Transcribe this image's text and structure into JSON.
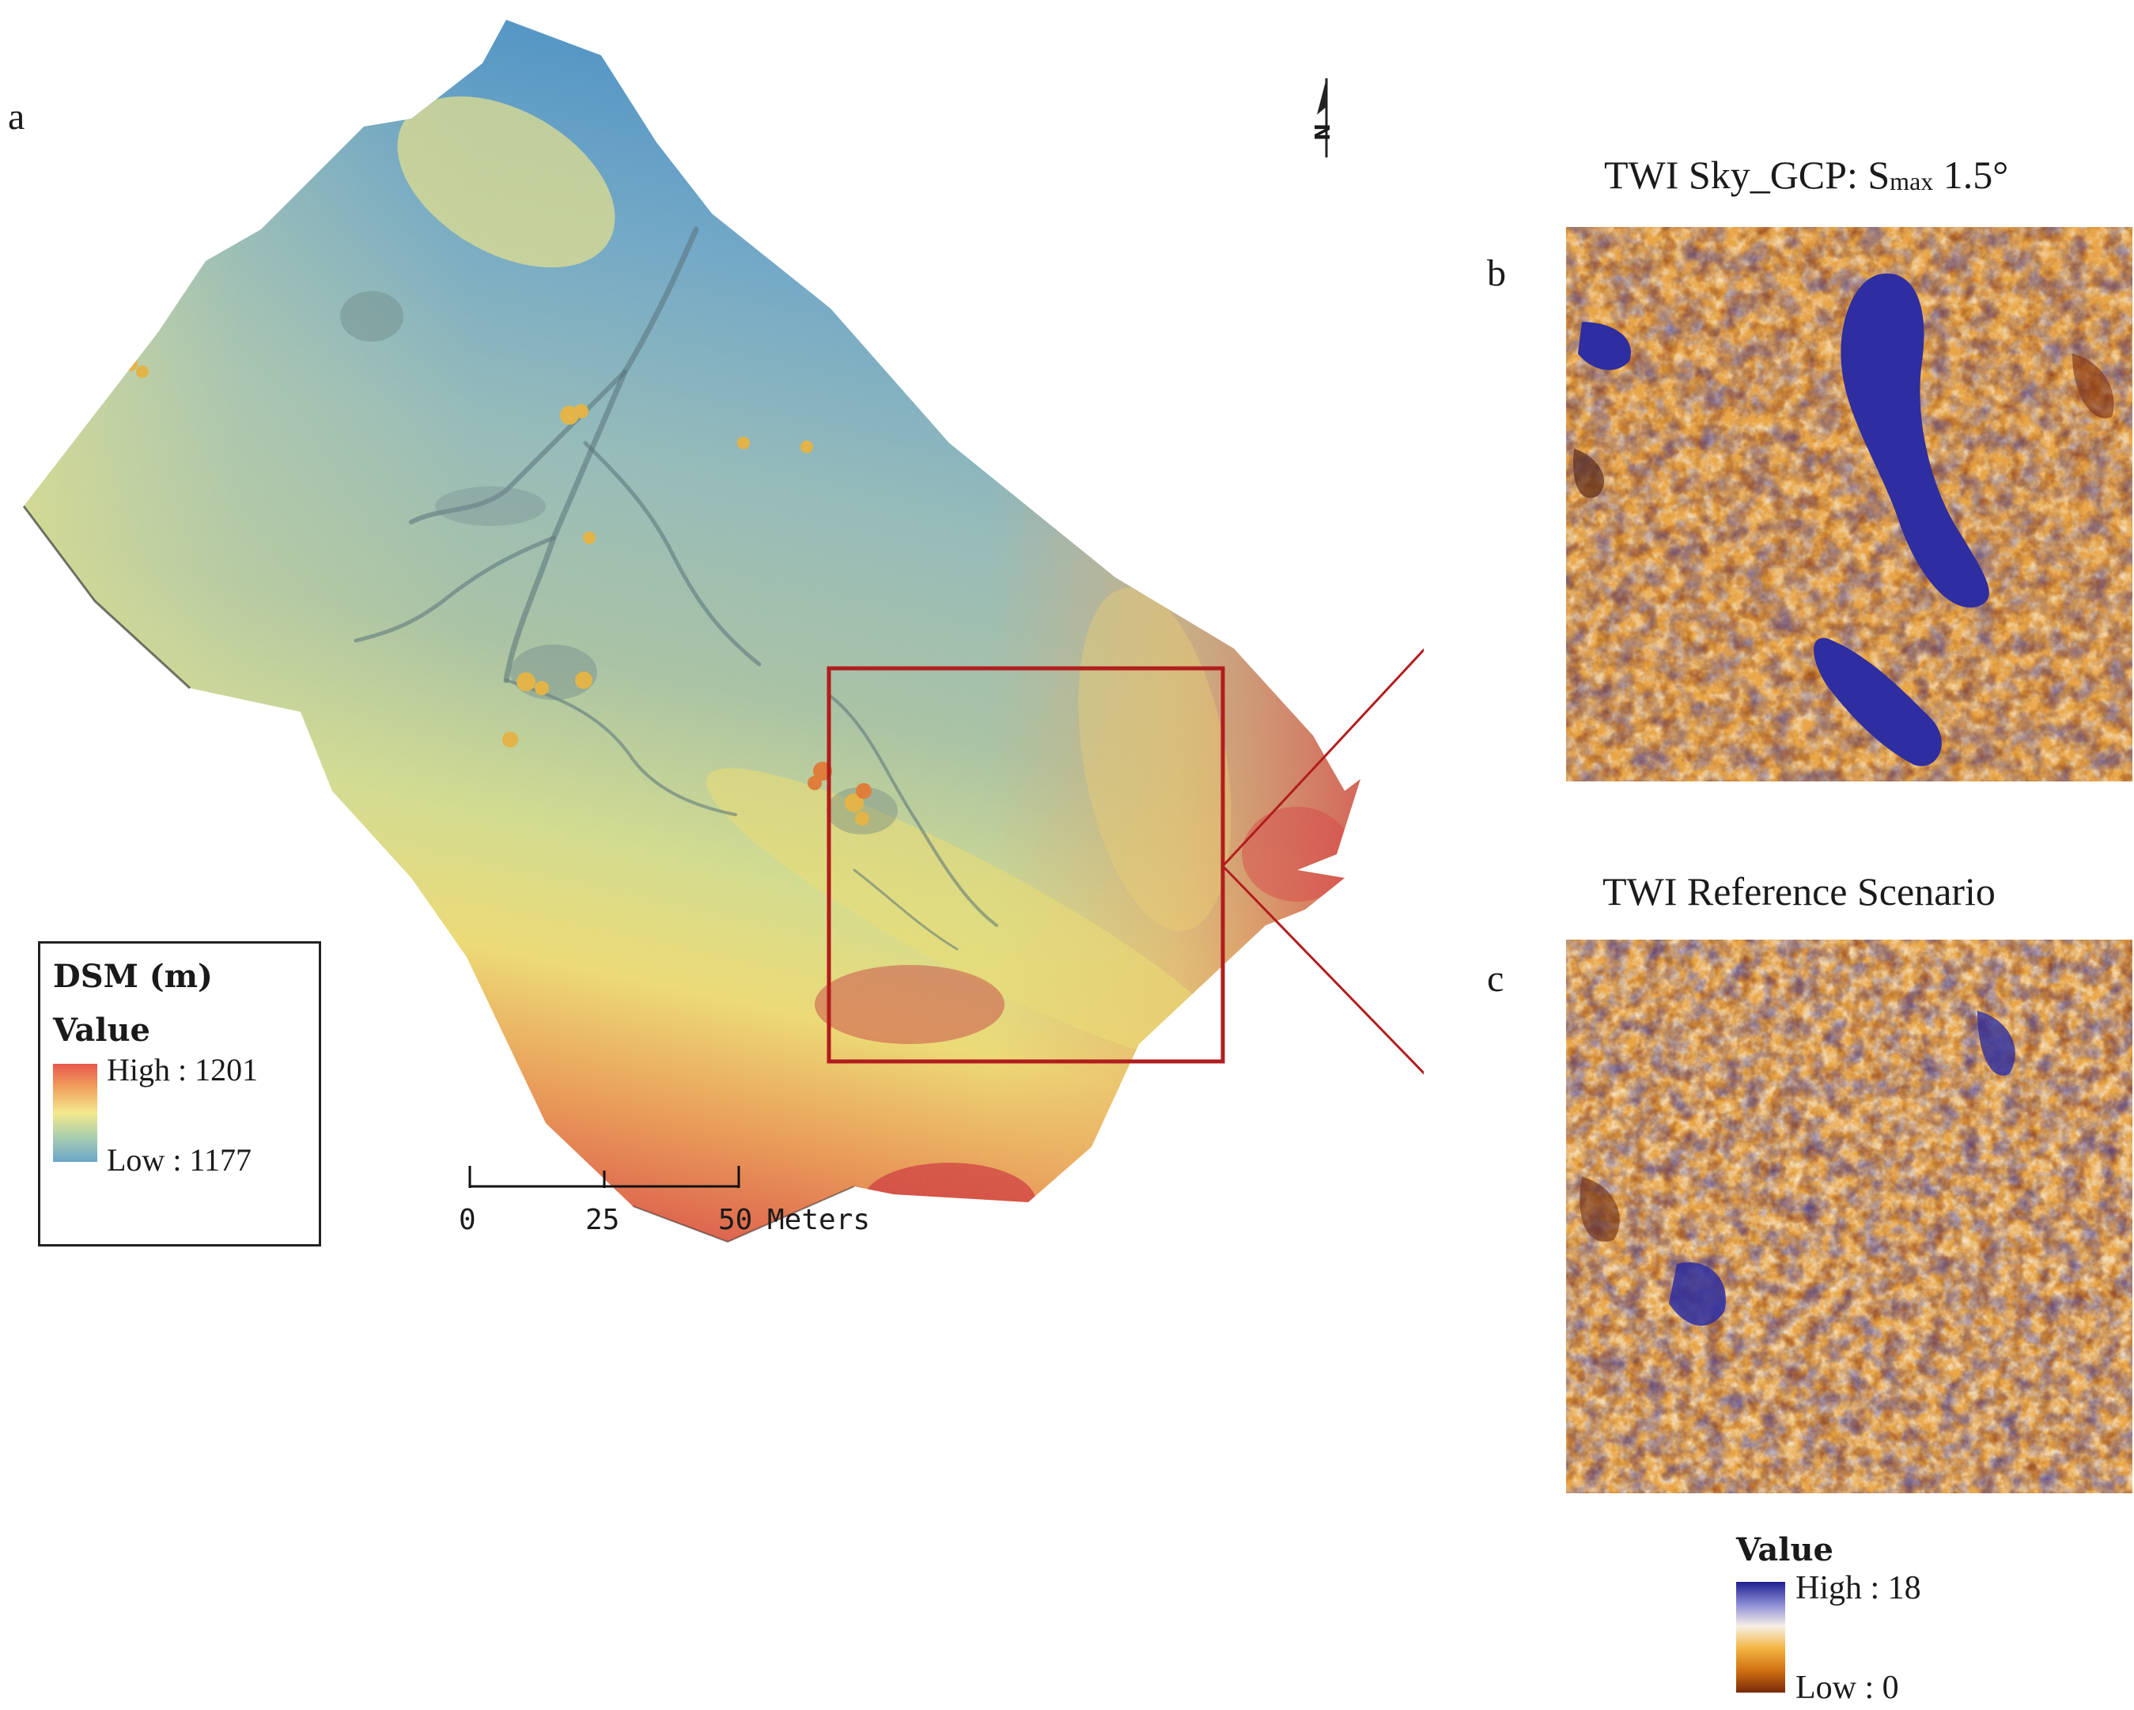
{
  "panels": {
    "a": {
      "letter": "a"
    },
    "b": {
      "letter": "b",
      "title_main": "TWI Sky_GCP: S",
      "title_sub": "max",
      "title_end": " 1.5°"
    },
    "c": {
      "letter": "c",
      "title": "TWI Reference Scenario"
    }
  },
  "dsm_legend": {
    "title": "DSM (m)",
    "value_label": "Value",
    "high_label": "High : 1201",
    "low_label": "Low : 1177",
    "ramp_colors": [
      "#e9574a",
      "#f0a45f",
      "#f2e98c",
      "#a9cdb0",
      "#6aa6c8"
    ]
  },
  "twi_legend": {
    "value_label": "Value",
    "high_label": "High : 18",
    "low_label": "Low : 0",
    "ramp_colors": [
      "#1e1e8e",
      "#8a8ad6",
      "#f6f0e6",
      "#f3b542",
      "#d07012",
      "#7a2a0a"
    ]
  },
  "scale_bar": {
    "ticks": [
      "0",
      "25",
      "50"
    ],
    "unit": "Meters"
  },
  "north_arrow": {
    "label": "N"
  },
  "highlight_color": "#b11d1d"
}
